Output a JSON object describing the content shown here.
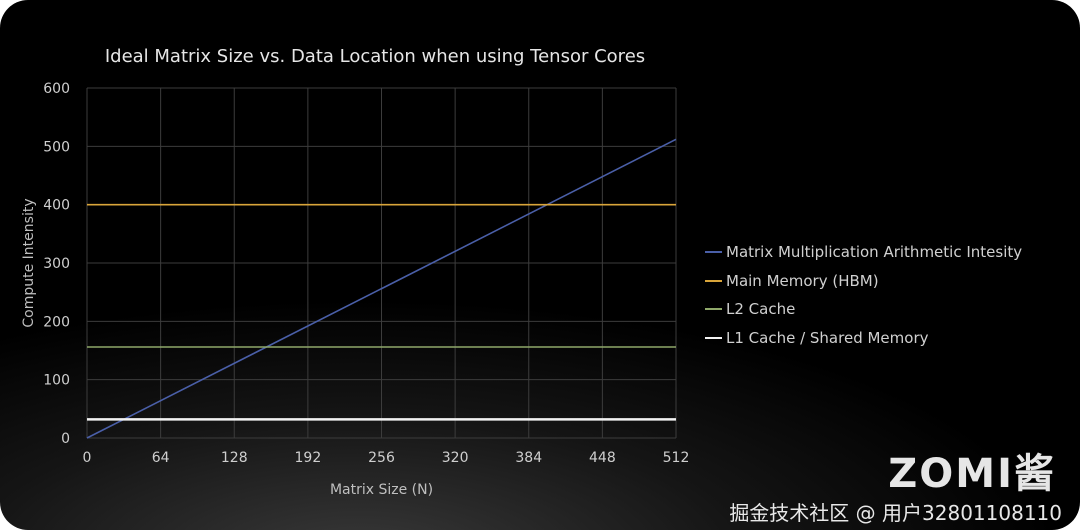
{
  "chart_data": {
    "type": "line",
    "title": "Ideal Matrix Size vs. Data Location when using Tensor Cores",
    "xlabel": "Matrix Size (N)",
    "ylabel": "Compute Intensity",
    "xlim": [
      0,
      512
    ],
    "ylim": [
      0,
      600
    ],
    "xticks": [
      0,
      64,
      128,
      192,
      256,
      320,
      384,
      448,
      512
    ],
    "yticks": [
      0,
      100,
      200,
      300,
      400,
      500,
      600
    ],
    "grid": true,
    "legend_position": "right",
    "series": [
      {
        "name": "Matrix Multiplication Arithmetic Intesity",
        "color": "#4a5fa8",
        "x": [
          0,
          512
        ],
        "y": [
          0,
          512
        ]
      },
      {
        "name": "Main Memory (HBM)",
        "color": "#d9a53a",
        "x": [
          0,
          512
        ],
        "y": [
          400,
          400
        ]
      },
      {
        "name": "L2 Cache",
        "color": "#8fa86a",
        "x": [
          0,
          512
        ],
        "y": [
          156,
          156
        ]
      },
      {
        "name": "L1 Cache / Shared Memory",
        "color": "#f2f2f2",
        "x": [
          0,
          512
        ],
        "y": [
          32,
          32
        ]
      }
    ]
  },
  "watermark": {
    "text": "掘金技术社区 @ 用户3280110811​0",
    "logo": "ZOMI酱"
  }
}
